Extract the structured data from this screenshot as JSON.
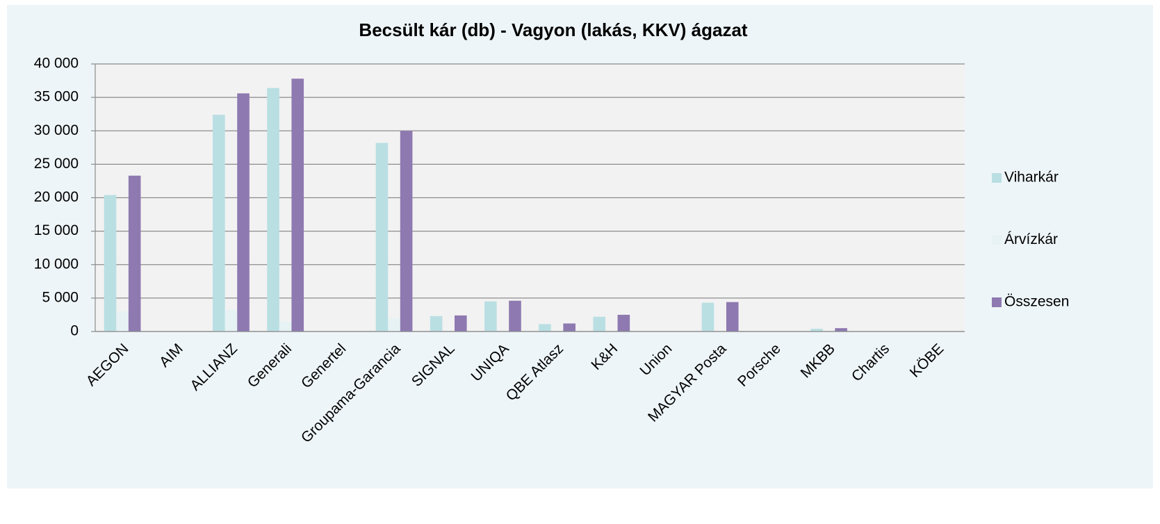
{
  "chart_data": {
    "type": "bar",
    "title": "Becsült kár (db) - Vagyon (lakás, KKV) ágazat",
    "categories": [
      "AEGON",
      "AIM",
      "ALLIANZ",
      "Generali",
      "Genertel",
      "Groupama-Garancia",
      "SIGNAL",
      "UNIQA",
      "QBE Atlasz",
      "K&H",
      "Union",
      "MAGYAR Posta",
      "Porsche",
      "MKBB",
      "Chartis",
      "KÖBE"
    ],
    "series": [
      {
        "name": "Viharkár",
        "color": "#b9dfe3",
        "values": [
          20400,
          0,
          32400,
          36400,
          0,
          28200,
          2300,
          4500,
          1100,
          2200,
          0,
          4300,
          0,
          400,
          0,
          0
        ]
      },
      {
        "name": "Árvízkár",
        "color": "#e6f2f4",
        "values": [
          3000,
          0,
          3200,
          1500,
          0,
          1900,
          0,
          0,
          0,
          0,
          0,
          0,
          0,
          0,
          0,
          0
        ]
      },
      {
        "name": "Összesen",
        "color": "#8e79b0",
        "values": [
          23300,
          0,
          35600,
          37800,
          0,
          30000,
          2400,
          4600,
          1200,
          2500,
          0,
          4400,
          0,
          500,
          0,
          0
        ]
      }
    ],
    "ylim": [
      0,
      40000
    ],
    "yticks": [
      0,
      {
        "value": 5000,
        "label": "5 000"
      },
      {
        "value": 10000,
        "label": "10 000"
      },
      {
        "value": 15000,
        "label": "15 000"
      },
      {
        "value": 20000,
        "label": "20 000"
      },
      {
        "value": 25000,
        "label": "25 000"
      },
      {
        "value": 30000,
        "label": "30 000"
      },
      {
        "value": 35000,
        "label": "35 000"
      },
      {
        "value": 40000,
        "label": "40 000"
      }
    ],
    "grid": true,
    "legend": "right"
  }
}
